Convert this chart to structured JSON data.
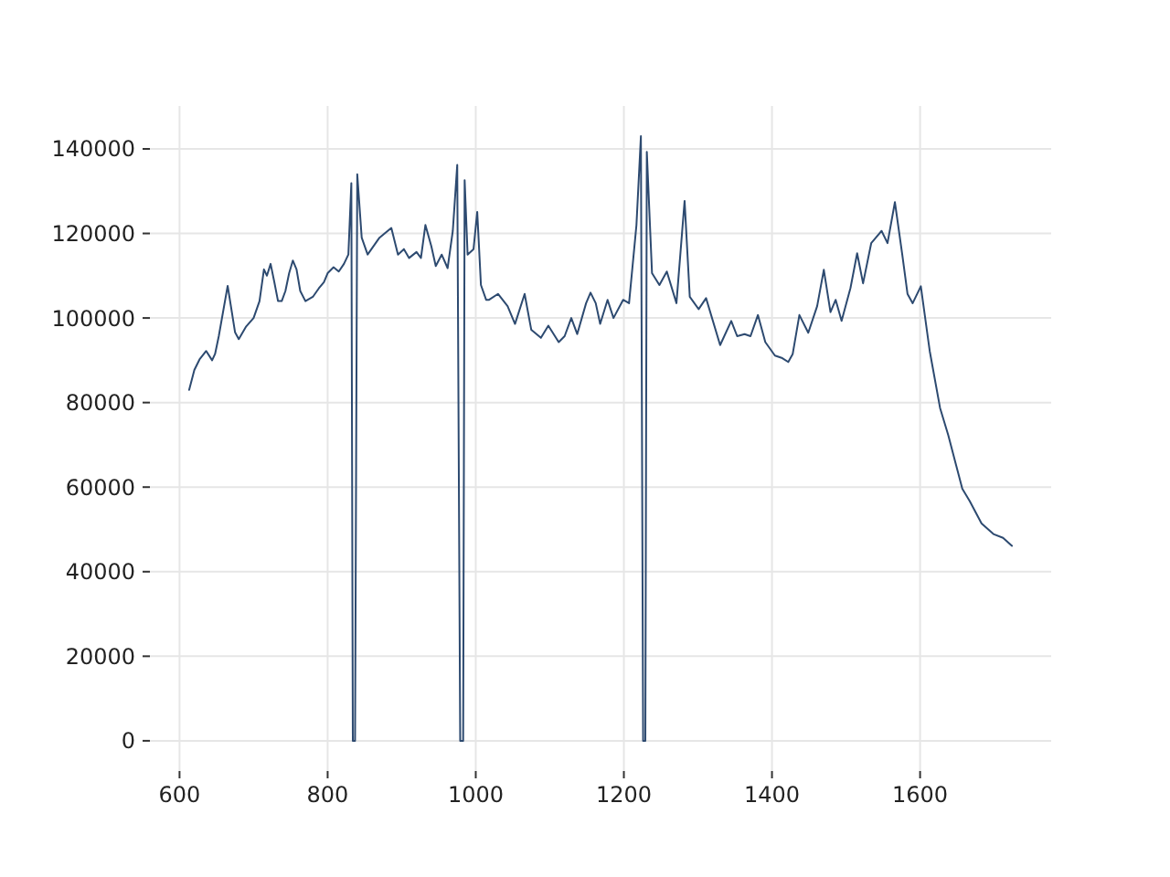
{
  "chart_data": {
    "type": "line",
    "color": "#2d4a70",
    "grid": true,
    "marker": "none",
    "line_style": "solid",
    "xlim": [
      560,
      1777
    ],
    "ylim": [
      -7150,
      150150
    ],
    "xticks": [
      600,
      800,
      1000,
      1200,
      1400,
      1600
    ],
    "yticks": [
      0,
      20000,
      40000,
      60000,
      80000,
      100000,
      120000,
      140000
    ],
    "x": [
      613,
      620,
      627,
      636,
      644,
      648,
      653,
      665,
      675,
      680,
      690,
      700,
      708,
      714,
      718,
      723,
      728,
      733,
      738,
      743,
      748,
      753,
      758,
      763,
      770,
      780,
      788,
      795,
      800,
      808,
      815,
      822,
      828,
      832,
      834,
      837,
      840,
      846,
      854,
      870,
      886,
      895,
      903,
      910,
      920,
      926,
      932,
      940,
      946,
      954,
      962,
      969,
      975,
      979,
      983,
      985,
      989,
      997,
      1002,
      1007,
      1014,
      1018,
      1030,
      1043,
      1053,
      1066,
      1075,
      1088,
      1098,
      1112,
      1120,
      1129,
      1137,
      1149,
      1155,
      1162,
      1168,
      1178,
      1186,
      1199,
      1207,
      1217,
      1223,
      1226,
      1229,
      1231,
      1238,
      1248,
      1258,
      1271,
      1282,
      1289,
      1301,
      1311,
      1330,
      1345,
      1353,
      1363,
      1371,
      1381,
      1391,
      1404,
      1414,
      1422,
      1428,
      1437,
      1449,
      1461,
      1470,
      1479,
      1486,
      1494,
      1506,
      1515,
      1523,
      1534,
      1548,
      1556,
      1566,
      1576,
      1583,
      1590,
      1601,
      1613,
      1627,
      1638,
      1657,
      1667,
      1683,
      1699,
      1712,
      1724
    ],
    "values": [
      83000,
      87700,
      90200,
      92200,
      90000,
      91500,
      95700,
      107600,
      96600,
      95000,
      98000,
      100000,
      104000,
      111500,
      110000,
      112800,
      108500,
      104000,
      104000,
      106400,
      110600,
      113600,
      111500,
      106400,
      104000,
      105000,
      107000,
      108500,
      110600,
      112000,
      111000,
      112800,
      115000,
      131900,
      0,
      0,
      134000,
      119000,
      115000,
      119000,
      121300,
      115000,
      116300,
      114200,
      115600,
      114200,
      122000,
      117000,
      112300,
      115000,
      111800,
      120600,
      136200,
      0,
      0,
      132600,
      115000,
      116300,
      125100,
      107800,
      104300,
      104300,
      105700,
      102800,
      98600,
      105700,
      97200,
      95300,
      98200,
      94300,
      95700,
      100000,
      96200,
      103500,
      106000,
      103500,
      98600,
      104300,
      100000,
      104300,
      103500,
      122000,
      143000,
      0,
      0,
      139300,
      110600,
      107800,
      111000,
      103500,
      127700,
      105000,
      102100,
      104700,
      93600,
      99300,
      95700,
      96200,
      95700,
      100700,
      94300,
      91100,
      90500,
      89600,
      91500,
      100700,
      96500,
      102800,
      111400,
      101400,
      104300,
      99300,
      107100,
      115300,
      108200,
      117700,
      120600,
      117700,
      127400,
      114900,
      105700,
      103500,
      107500,
      92200,
      78700,
      72300,
      59600,
      56700,
      51400,
      48900,
      48000,
      46100
    ]
  }
}
